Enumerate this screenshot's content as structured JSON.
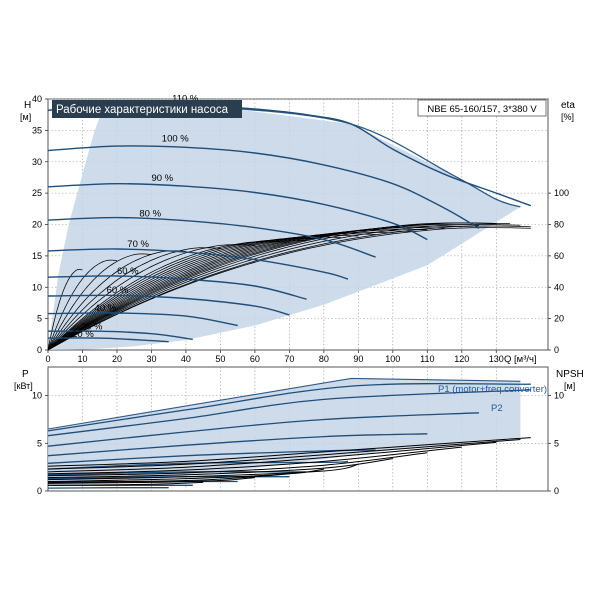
{
  "colors": {
    "curve": "#1f4e79",
    "region": "#c5d5e8",
    "region_edge": "#2e5a88",
    "grid": "#999999",
    "eta": "#000000",
    "title_bg": "#2b3e50",
    "title_fg": "#ffffff",
    "p_label": "#1f5c99"
  },
  "chart_data": [
    {
      "type": "line",
      "title": "Рабочие характеристики насоса",
      "model_label": "NBE 65-160/157, 3*380 V",
      "ylabel": "H",
      "ylabel_unit": "[м]",
      "y2label": "eta",
      "y2label_unit": "[%]",
      "xlabel_unit": "Q [м³/ч]",
      "xlim": [
        0,
        145
      ],
      "ylim": [
        0,
        40
      ],
      "y2lim": [
        0,
        160
      ],
      "x_ticks": [
        "0",
        "10",
        "20",
        "30",
        "40",
        "50",
        "60",
        "70",
        "80",
        "90",
        "100",
        "110",
        "120",
        "130"
      ],
      "x_tick_values": [
        0,
        10,
        20,
        30,
        40,
        50,
        60,
        70,
        80,
        90,
        100,
        110,
        120,
        130
      ],
      "y_ticks": [
        "0",
        "5",
        "10",
        "15",
        "20",
        "25",
        "30",
        "35",
        "40"
      ],
      "y2_ticks": [
        "0",
        "20",
        "40",
        "60",
        "80",
        "100"
      ],
      "grid": true,
      "speed_labels": [
        {
          "text": "110 %",
          "q": 36,
          "h": 39.6
        },
        {
          "text": "100 %",
          "q": 33,
          "h": 33.2
        },
        {
          "text": "90 %",
          "q": 30,
          "h": 26.9
        },
        {
          "text": "80 %",
          "q": 26.5,
          "h": 21.3
        },
        {
          "text": "70 %",
          "q": 23,
          "h": 16.4
        },
        {
          "text": "60 %",
          "q": 20,
          "h": 12.1
        },
        {
          "text": "60 %",
          "q": 17,
          "h": 9.1
        },
        {
          "text": "40 %",
          "q": 13.5,
          "h": 6.2
        },
        {
          "text": "25 %",
          "q": 9.5,
          "h": 3.3
        },
        {
          "text": "20 %",
          "q": 7,
          "h": 2.1
        }
      ],
      "region_polygon": [
        [
          0,
          0
        ],
        [
          1,
          4
        ],
        [
          3,
          12
        ],
        [
          6,
          20
        ],
        [
          10,
          28
        ],
        [
          13,
          34
        ],
        [
          16,
          38.8
        ],
        [
          30,
          39.2
        ],
        [
          50,
          38.7
        ],
        [
          88,
          36
        ],
        [
          117,
          28
        ],
        [
          130,
          24
        ],
        [
          137,
          22.8
        ],
        [
          110,
          13.5
        ],
        [
          80,
          7.2
        ],
        [
          60,
          3.9
        ],
        [
          40,
          1.6
        ],
        [
          25,
          0.6
        ],
        [
          12,
          0.1
        ]
      ],
      "series": [
        {
          "speed": "110 %",
          "q": [
            0,
            15,
            30,
            45,
            60,
            75,
            88,
            100,
            115,
            130,
            140
          ],
          "h": [
            38.2,
            38.9,
            39.1,
            38.9,
            38.4,
            37.5,
            36,
            32,
            28,
            25,
            23
          ]
        },
        {
          "speed": "100 %",
          "q": [
            0,
            20,
            40,
            60,
            80,
            100,
            115,
            125
          ],
          "h": [
            31.8,
            32.5,
            32.3,
            31.4,
            29.5,
            26.5,
            22.6,
            19.4
          ]
        },
        {
          "speed": "90 %",
          "q": [
            0,
            20,
            40,
            60,
            80,
            100,
            110
          ],
          "h": [
            26.0,
            26.5,
            26.1,
            25.1,
            23.2,
            20.2,
            17.6
          ]
        },
        {
          "speed": "80 %",
          "q": [
            0,
            20,
            40,
            60,
            80,
            95
          ],
          "h": [
            20.7,
            21.1,
            20.6,
            19.5,
            17.6,
            14.8
          ]
        },
        {
          "speed": "70 %",
          "q": [
            0,
            20,
            40,
            60,
            80,
            87
          ],
          "h": [
            15.8,
            16.1,
            15.6,
            14.4,
            12.4,
            11.3
          ]
        },
        {
          "speed": "60 %",
          "q": [
            0,
            20,
            40,
            60,
            75
          ],
          "h": [
            11.6,
            11.8,
            11.3,
            10.2,
            8.1
          ]
        },
        {
          "speed": "60 %",
          "q": [
            0,
            20,
            40,
            60,
            70
          ],
          "h": [
            8.6,
            8.7,
            8.2,
            7.0,
            5.6
          ]
        },
        {
          "speed": "40 %",
          "q": [
            0,
            20,
            40,
            55
          ],
          "h": [
            5.8,
            5.9,
            5.4,
            3.9
          ]
        },
        {
          "speed": "25 %",
          "q": [
            0,
            15,
            30,
            42
          ],
          "h": [
            3.0,
            3.0,
            2.6,
            1.7
          ]
        },
        {
          "speed": "20 %",
          "q": [
            0,
            15,
            30,
            35
          ],
          "h": [
            1.9,
            1.9,
            1.5,
            1.3
          ]
        }
      ],
      "eta_curves": [
        {
          "qmax": 140,
          "etamax": 79
        },
        {
          "qmax": 140,
          "etamax": 80
        },
        {
          "qmax": 137,
          "etamax": 81
        },
        {
          "qmax": 134,
          "etamax": 82
        },
        {
          "qmax": 130,
          "etamax": 82
        },
        {
          "qmax": 125,
          "etamax": 81
        },
        {
          "qmax": 120,
          "etamax": 80
        },
        {
          "qmax": 115,
          "etamax": 79
        },
        {
          "qmax": 110,
          "etamax": 78
        },
        {
          "qmax": 105,
          "etamax": 77
        },
        {
          "qmax": 100,
          "etamax": 76
        },
        {
          "qmax": 95,
          "etamax": 75
        },
        {
          "qmax": 90,
          "etamax": 74
        },
        {
          "qmax": 85,
          "etamax": 73
        },
        {
          "qmax": 80,
          "etamax": 72
        },
        {
          "qmax": 75,
          "etamax": 71
        },
        {
          "qmax": 70,
          "etamax": 70
        },
        {
          "qmax": 60,
          "etamax": 68
        },
        {
          "qmax": 50,
          "etamax": 66
        },
        {
          "qmax": 40,
          "etamax": 64
        },
        {
          "qmax": 30,
          "etamax": 62
        },
        {
          "qmax": 20,
          "etamax": 58
        },
        {
          "qmax": 10,
          "etamax": 52
        }
      ]
    },
    {
      "type": "line",
      "ylabel": "P",
      "ylabel_unit": "[кВт]",
      "y2label": "NPSH",
      "y2label_unit": "[м]",
      "xlim": [
        0,
        145
      ],
      "ylim": [
        0,
        13
      ],
      "y_ticks": [
        "0",
        "5",
        "10"
      ],
      "y2_ticks": [
        "0",
        "5",
        "10"
      ],
      "grid": true,
      "p1_label": "P1 (motor+freq.converter)",
      "p2_label": "P2",
      "region_polygon": [
        [
          0,
          6.5
        ],
        [
          88,
          11.8
        ],
        [
          137,
          11.5
        ],
        [
          137,
          5.6
        ],
        [
          100,
          4.3
        ],
        [
          60,
          2.4
        ],
        [
          30,
          1.2
        ],
        [
          0,
          0.8
        ]
      ],
      "power_curves": [
        {
          "q": [
            0,
            40,
            88,
            140
          ],
          "p": [
            6.3,
            8.5,
            11.0,
            11.2
          ]
        },
        {
          "q": [
            0,
            40,
            80,
            140
          ],
          "p": [
            5.8,
            7.6,
            9.6,
            10.6
          ]
        },
        {
          "q": [
            0,
            40,
            80,
            125
          ],
          "p": [
            4.7,
            6.2,
            7.5,
            8.2
          ]
        },
        {
          "q": [
            0,
            40,
            80,
            110
          ],
          "p": [
            3.7,
            4.8,
            5.7,
            6.0
          ]
        },
        {
          "q": [
            0,
            40,
            80,
            95
          ],
          "p": [
            2.9,
            3.7,
            4.2,
            4.3
          ]
        },
        {
          "q": [
            0,
            40,
            80,
            87
          ],
          "p": [
            2.3,
            2.9,
            3.0,
            3.1
          ]
        },
        {
          "q": [
            0,
            40,
            70,
            75
          ],
          "p": [
            1.7,
            2.0,
            2.0,
            2.0
          ]
        },
        {
          "q": [
            0,
            40,
            60,
            70
          ],
          "p": [
            1.3,
            1.5,
            1.5,
            1.5
          ]
        },
        {
          "q": [
            0,
            30,
            55
          ],
          "p": [
            0.9,
            1.0,
            1.0
          ]
        },
        {
          "q": [
            0,
            30,
            42
          ],
          "p": [
            0.6,
            0.6,
            0.6
          ]
        },
        {
          "q": [
            0,
            20,
            35
          ],
          "p": [
            0.3,
            0.35,
            0.35
          ]
        }
      ],
      "npsh_curves": [
        {
          "q": [
            0,
            40,
            80,
            140
          ],
          "n": [
            2.6,
            3.1,
            4.1,
            5.6
          ]
        },
        {
          "q": [
            0,
            40,
            80,
            137
          ],
          "n": [
            2.3,
            2.8,
            3.8,
            5.4
          ]
        },
        {
          "q": [
            0,
            40,
            80,
            130
          ],
          "n": [
            2.0,
            2.5,
            3.5,
            5.1
          ]
        },
        {
          "q": [
            0,
            40,
            80,
            120
          ],
          "n": [
            1.8,
            2.2,
            3.1,
            4.6
          ]
        },
        {
          "q": [
            0,
            40,
            80,
            110
          ],
          "n": [
            1.6,
            1.9,
            2.7,
            4.0
          ]
        },
        {
          "q": [
            0,
            40,
            80,
            100
          ],
          "n": [
            1.4,
            1.7,
            2.4,
            3.4
          ]
        },
        {
          "q": [
            0,
            40,
            80,
            90
          ],
          "n": [
            1.2,
            1.5,
            2.1,
            2.8
          ]
        },
        {
          "q": [
            0,
            40,
            70,
            80
          ],
          "n": [
            1.0,
            1.3,
            1.8,
            2.3
          ]
        },
        {
          "q": [
            0,
            40,
            60,
            70
          ],
          "n": [
            0.9,
            1.1,
            1.5,
            1.8
          ]
        },
        {
          "q": [
            0,
            30,
            50,
            60
          ],
          "n": [
            0.8,
            0.9,
            1.1,
            1.4
          ]
        },
        {
          "q": [
            0,
            30,
            45
          ],
          "n": [
            0.6,
            0.7,
            0.9
          ]
        }
      ]
    }
  ]
}
